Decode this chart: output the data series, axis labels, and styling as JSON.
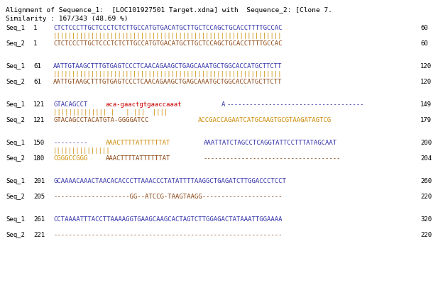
{
  "background_color": "#ffffff",
  "title_lines": [
    "Alignment of Sequence_1:  [LOC101927501 Target.xdna] with  Sequence_2: [Clone 7.",
    "Similarity : 167/343 (48.69 %)"
  ],
  "blocks": [
    {
      "seq1_label": "Seq_1",
      "seq1_num": "1",
      "seq1_parts": [
        [
          "CTCTCCCTTGCTCCCTCTCTTGCCATGTGACATGCTTGCTCCAGCTGCACCTTTTGCCAC",
          "#3333aa"
        ]
      ],
      "seq1_end": "60",
      "pipes": "||||||||||||||||||||||||||||||||||||||||||||||||||||||||||||",
      "seq2_label": "Seq_2",
      "seq2_num": "1",
      "seq2_parts": [
        [
          "CTCTCCCTTGCTCCCTCTCTTGCCATGTGACATGCTTGCTCCAGCTGCACCTTTTGCCAC",
          "#8B4513"
        ]
      ],
      "seq2_end": "60"
    },
    {
      "seq1_label": "Seq_1",
      "seq1_num": "61",
      "seq1_parts": [
        [
          "AATTGTAAGCTTTGTGAGTCCCTCAACAGAAGCTGAGCAAATGCTGGCACCATGCTTCTT",
          "#3333aa"
        ]
      ],
      "seq1_end": "120",
      "pipes": "||||||||||||||||||||||||||||||||||||||||||||||||||||||||||||",
      "seq2_label": "Seq_2",
      "seq2_num": "61",
      "seq2_parts": [
        [
          "AATTGTAAGCTTTGTGAGTCCCTCAACAGAAGCTGAGCAAATGCTGGCACCATGCTTCTT",
          "#8B4513"
        ]
      ],
      "seq2_end": "120"
    },
    {
      "seq1_label": "Seq_1",
      "seq1_num": "121",
      "seq1_parts": [
        [
          "GTACAGCCT",
          "#3333aa"
        ],
        [
          "aca-gaactgtgaaccaaat",
          "#cc0000"
        ],
        [
          "A",
          "#3333aa"
        ],
        [
          "------------------------------------",
          "#3333aa"
        ]
      ],
      "seq1_end": "149",
      "pipes": "|||||||||||||| |   | |||  ||||",
      "seq2_label": "Seq_2",
      "seq2_num": "121",
      "seq2_parts": [
        [
          "GTACAGCCTACATGTA-GGGGATCC",
          "#8B4513"
        ],
        [
          "ACCGACCAGAATCATGCAAGTGCGTAAGATAGTCG",
          "#cc8800"
        ]
      ],
      "seq2_end": "179"
    },
    {
      "seq1_label": "Seq_1",
      "seq1_num": "150",
      "seq1_parts": [
        [
          "---------",
          "#3333aa"
        ],
        [
          "AAACTTTTATTTTTTAT",
          "#cc8800"
        ],
        [
          "AAATTATCTAGCCTCAGGTATTCCTTTATAGCAAT",
          "#3333aa"
        ]
      ],
      "seq1_end": "200",
      "pipes": "|||||||||||||||",
      "seq2_label": "Seq_2",
      "seq2_num": "180",
      "seq2_parts": [
        [
          "CGGGCCGGG",
          "#cc8800"
        ],
        [
          "AAACTTTTATTTTTTAT",
          "#8B4513"
        ],
        [
          "------------------------------------",
          "#8B4513"
        ]
      ],
      "seq2_end": "204"
    },
    {
      "seq1_label": "Seq_1",
      "seq1_num": "201",
      "seq1_parts": [
        [
          "GCAAAACAAACTAACACACCCTTAAACCCTATATTTTAAGGCTGAGATCTTGGACCCTCCT",
          "#3333aa"
        ]
      ],
      "seq1_end": "260",
      "pipes": "",
      "seq2_label": "Seq_2",
      "seq2_num": "205",
      "seq2_parts": [
        [
          "--------------------GG--ATCCG-TAAGTAAGG---------------------",
          "#8B4513"
        ]
      ],
      "seq2_end": "220"
    },
    {
      "seq1_label": "Seq_1",
      "seq1_num": "261",
      "seq1_parts": [
        [
          "CCTAAAATTTACCTTAAAAGGTGAAGCAAGCACTAGTCTTGGAGACTATAAATTGGAAAA",
          "#3333aa"
        ]
      ],
      "seq1_end": "320",
      "pipes": "",
      "seq2_label": "Seq_2",
      "seq2_num": "221",
      "seq2_parts": [
        [
          "------------------------------------------------------------",
          "#8B4513"
        ]
      ],
      "seq2_end": "220"
    }
  ],
  "label_color": "#000000",
  "pipe_color": "#cc8800",
  "fontsize": 6.5,
  "title_fontsize": 6.8
}
